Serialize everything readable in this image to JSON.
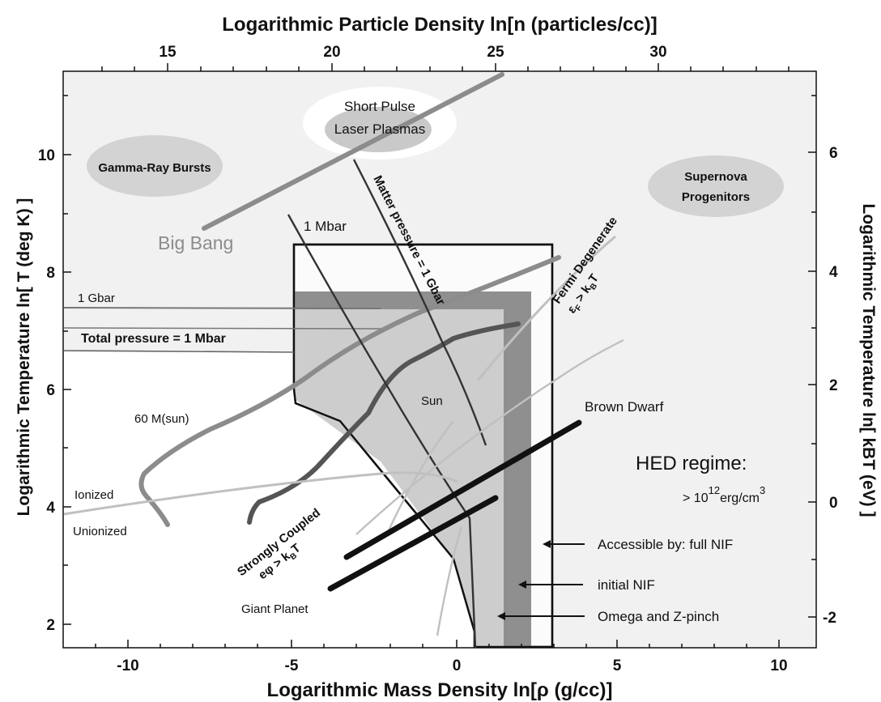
{
  "axes": {
    "top_title": "Logarithmic Particle Density ln[n (particles/cc)]",
    "bottom_title": "Logarithmic Mass Density ln[ρ (g/cc)]",
    "left_title": "Logarithmic Temperature ln[ T (deg K) ]",
    "right_title": "Logarithmic Temperature ln[ kBT (eV) ]",
    "x_ticks": [
      "-10",
      "-5",
      "0",
      "5",
      "10"
    ],
    "x_range": [
      -12,
      11
    ],
    "top_ticks": [
      "15",
      "20",
      "25",
      "30"
    ],
    "left_ticks": [
      "2",
      "4",
      "6",
      "8",
      "10"
    ],
    "left_range": [
      1.5,
      11.5
    ],
    "right_ticks": [
      "-2",
      "0",
      "2",
      "4",
      "6"
    ]
  },
  "regions": {
    "gamma_ray_bursts": "Gamma-Ray Bursts",
    "short_pulse_line1": "Short Pulse",
    "short_pulse_line2": "Laser Plasmas",
    "supernova_line1": "Supernova",
    "supernova_line2": "Progenitors"
  },
  "labels": {
    "big_bang": "Big Bang",
    "one_mbar": "1 Mbar",
    "one_gbar": "1 Gbar",
    "total_pressure": "Total pressure = 1 Mbar",
    "matter_pressure": "Matter pressure = 1 Gbar",
    "fermi_degenerate": "Fermi Degenerate",
    "fermi_cond_eps": "ε",
    "fermi_cond_sub": "F",
    "fermi_cond_gt": " > k",
    "fermi_cond_b": "B",
    "fermi_cond_t": "T",
    "strongly_coupled": "Strongly Coupled",
    "sc_cond_e": "eφ > k",
    "sc_cond_b": "B",
    "sc_cond_t": "T",
    "sixty_msun": "60 M(sun)",
    "sun": "Sun",
    "brown_dwarf": "Brown Dwarf",
    "ionized": "Ionized",
    "unionized": "Unionized",
    "giant_planet": "Giant Planet",
    "hed_title": "HED regime:",
    "hed_gt": "> 10",
    "hed_exp": "12",
    "hed_unit": "erg/cm",
    "hed_unit_exp": "3",
    "accessible_full_nif": "Accessible by: full NIF",
    "initial_nif": "initial NIF",
    "omega_zpinch": "Omega and Z-pinch"
  },
  "colors": {
    "background": "#f1f1f1",
    "region_light": "#fbfbfb",
    "region_mid": "#cdcdcd",
    "region_dark": "#8f8f8f",
    "ellipse": "#d3d3d3",
    "curve_gray": "#8c8c8c",
    "curve_dark": "#555555",
    "curve_light": "#c0c0c0",
    "outline": "#111111"
  }
}
